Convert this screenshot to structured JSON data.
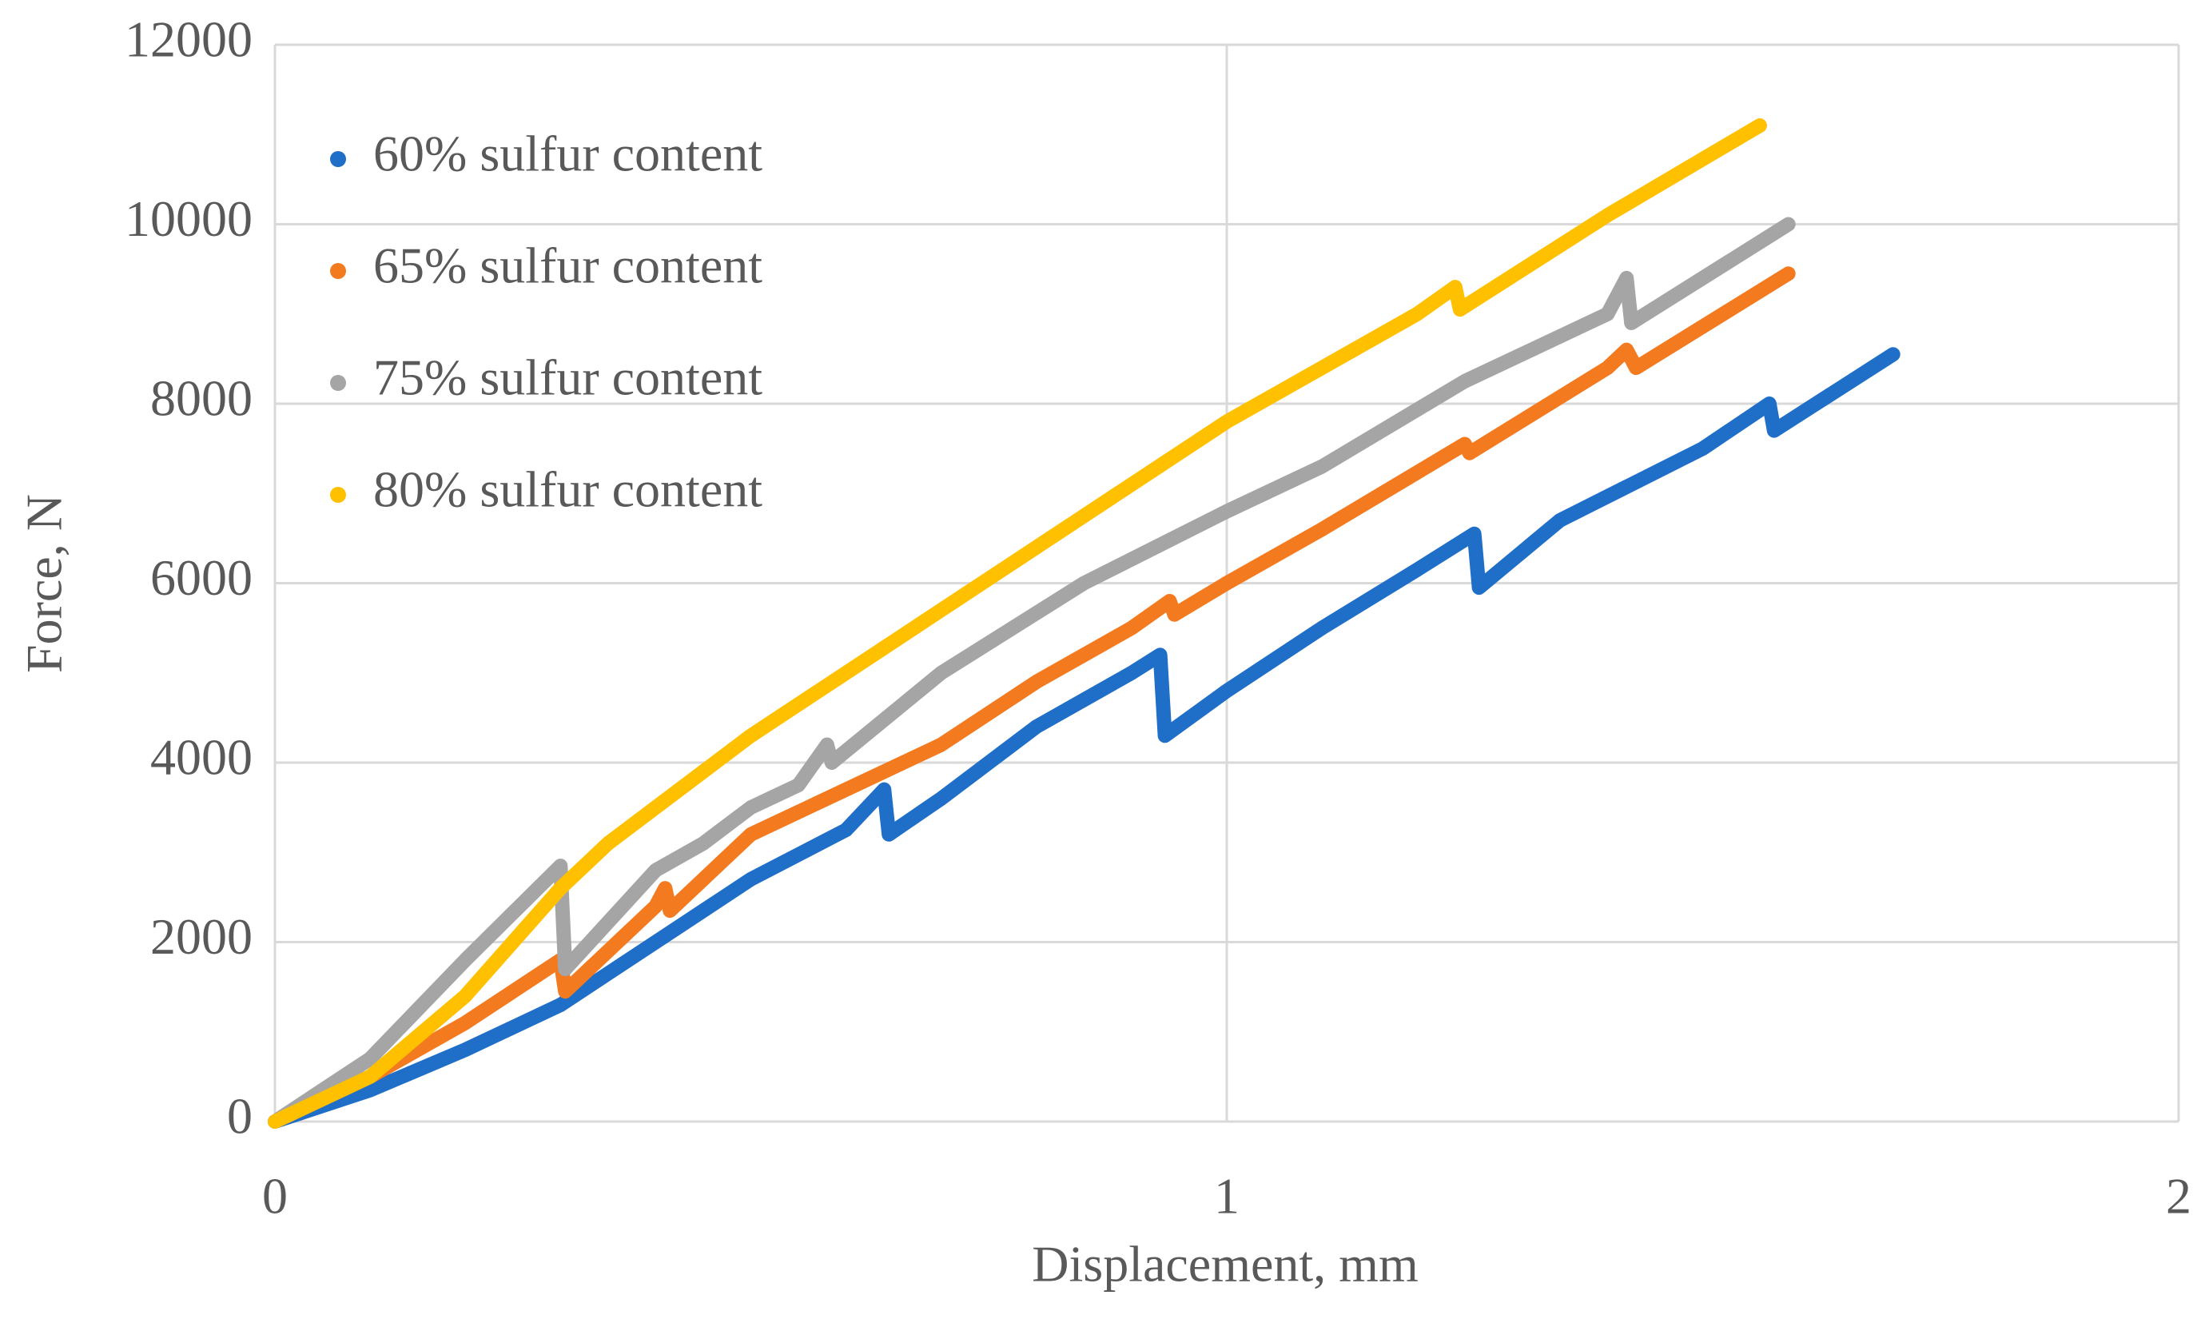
{
  "chart_data": {
    "type": "line",
    "xlabel": "Displacement, mm",
    "ylabel": "Force, N",
    "xlim": [
      0,
      2
    ],
    "xticks": [
      0,
      1,
      2
    ],
    "ylim": [
      0,
      12000
    ],
    "yticks": [
      0,
      2000,
      4000,
      6000,
      8000,
      10000,
      12000
    ],
    "grid": true,
    "legend": "upper left",
    "series": [
      {
        "name": "60% sulfur content",
        "color": "#1f6fc8",
        "x": [
          0,
          0.1,
          0.2,
          0.3,
          0.4,
          0.5,
          0.6,
          0.64,
          0.645,
          0.7,
          0.8,
          0.9,
          0.93,
          0.935,
          1.0,
          1.1,
          1.2,
          1.26,
          1.265,
          1.35,
          1.5,
          1.57,
          1.575,
          1.7
        ],
        "values": [
          0,
          350,
          800,
          1300,
          2000,
          2700,
          3250,
          3700,
          3200,
          3600,
          4400,
          5000,
          5200,
          4300,
          4800,
          5500,
          6150,
          6550,
          5950,
          6700,
          7500,
          8000,
          7700,
          8550
        ]
      },
      {
        "name": "65% sulfur content",
        "color": "#f47a20",
        "x": [
          0,
          0.1,
          0.2,
          0.3,
          0.305,
          0.4,
          0.41,
          0.415,
          0.5,
          0.6,
          0.7,
          0.8,
          0.9,
          0.94,
          0.945,
          1.0,
          1.1,
          1.25,
          1.255,
          1.4,
          1.42,
          1.43,
          1.59
        ],
        "values": [
          0,
          500,
          1100,
          1800,
          1450,
          2400,
          2600,
          2350,
          3200,
          3700,
          4200,
          4900,
          5500,
          5800,
          5650,
          6000,
          6600,
          7550,
          7450,
          8400,
          8600,
          8400,
          9450
        ]
      },
      {
        "name": "75% sulfur content",
        "color": "#a5a5a5",
        "x": [
          0,
          0.1,
          0.2,
          0.3,
          0.305,
          0.4,
          0.45,
          0.5,
          0.55,
          0.58,
          0.585,
          0.7,
          0.85,
          1.0,
          1.1,
          1.25,
          1.4,
          1.42,
          1.425,
          1.59
        ],
        "values": [
          0,
          700,
          1800,
          2850,
          1700,
          2800,
          3100,
          3500,
          3750,
          4200,
          4000,
          5000,
          6000,
          6800,
          7300,
          8250,
          9000,
          9400,
          8900,
          10000
        ]
      },
      {
        "name": "80% sulfur content",
        "color": "#ffc000",
        "x": [
          0,
          0.1,
          0.2,
          0.3,
          0.35,
          0.5,
          0.7,
          0.8,
          1.0,
          1.2,
          1.24,
          1.245,
          1.4,
          1.56
        ],
        "values": [
          0,
          500,
          1400,
          2600,
          3100,
          4300,
          5700,
          6400,
          7800,
          9000,
          9300,
          9050,
          10100,
          11100
        ]
      }
    ]
  }
}
